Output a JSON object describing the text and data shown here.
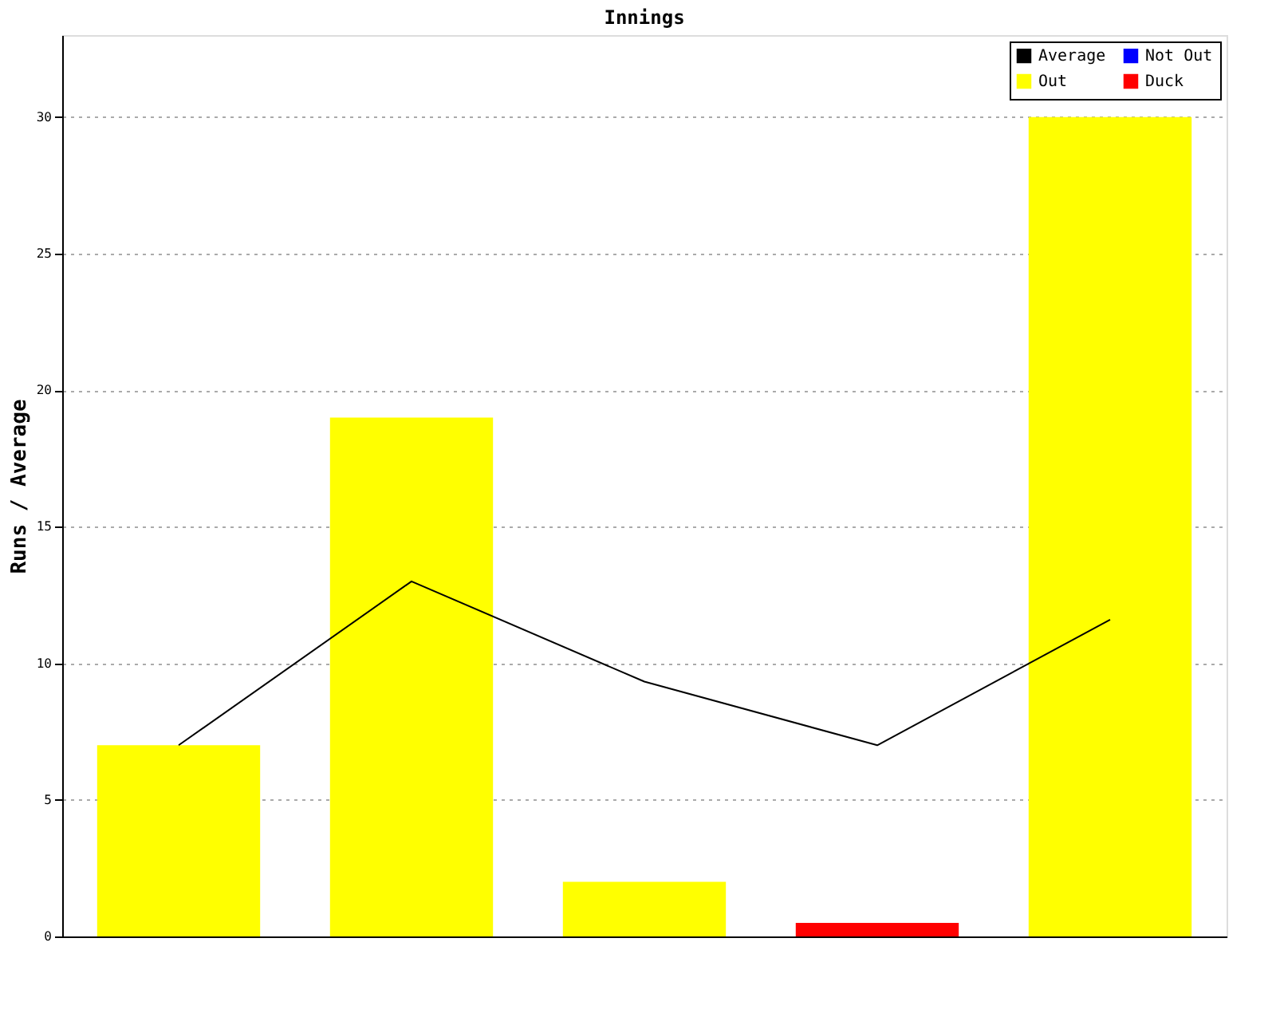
{
  "chart_data": {
    "type": "bar",
    "title": "Innings",
    "ylabel": "Runs / Average",
    "categories": [
      null,
      null,
      null,
      null,
      null
    ],
    "series": [
      {
        "name": "Average",
        "type": "line",
        "color": "#000000",
        "values": [
          7,
          13,
          9.33,
          7,
          11.6
        ]
      },
      {
        "name": "Out",
        "color": "#ffff00",
        "values": [
          7,
          19,
          2,
          null,
          30
        ]
      },
      {
        "name": "Not Out",
        "color": "#0000ff",
        "values": [
          null,
          null,
          null,
          null,
          null
        ]
      },
      {
        "name": "Duck",
        "color": "#ff0000",
        "values": [
          null,
          null,
          null,
          0.5,
          null
        ]
      }
    ],
    "ylim": [
      0,
      33
    ],
    "yticks": [
      0,
      5,
      10,
      15,
      20,
      25,
      30
    ],
    "grid": "y",
    "legend": "top right",
    "tick_labels": "y",
    "line_style": "solid"
  }
}
